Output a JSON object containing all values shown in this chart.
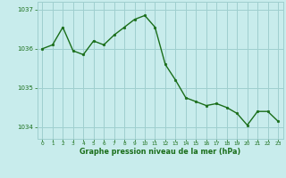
{
  "x": [
    0,
    1,
    2,
    3,
    4,
    5,
    6,
    7,
    8,
    9,
    10,
    11,
    12,
    13,
    14,
    15,
    16,
    17,
    18,
    19,
    20,
    21,
    22,
    23
  ],
  "y": [
    1036.0,
    1036.1,
    1036.55,
    1035.95,
    1035.85,
    1036.2,
    1036.1,
    1036.35,
    1036.55,
    1036.75,
    1036.85,
    1036.55,
    1035.6,
    1035.2,
    1034.75,
    1034.65,
    1034.55,
    1034.6,
    1034.5,
    1034.35,
    1034.05,
    1034.4,
    1034.4,
    1034.15
  ],
  "line_color": "#1a6e1a",
  "marker": "o",
  "marker_size": 2.0,
  "bg_color": "#c8ecec",
  "grid_color": "#9fcfcf",
  "xlabel": "Graphe pression niveau de la mer (hPa)",
  "xlabel_color": "#1a6e1a",
  "tick_color": "#1a6e1a",
  "ylim": [
    1033.7,
    1037.2
  ],
  "yticks": [
    1034,
    1035,
    1036,
    1037
  ],
  "xticks": [
    0,
    1,
    2,
    3,
    4,
    5,
    6,
    7,
    8,
    9,
    10,
    11,
    12,
    13,
    14,
    15,
    16,
    17,
    18,
    19,
    20,
    21,
    22,
    23
  ],
  "xlim": [
    -0.5,
    23.5
  ],
  "linewidth": 1.0
}
